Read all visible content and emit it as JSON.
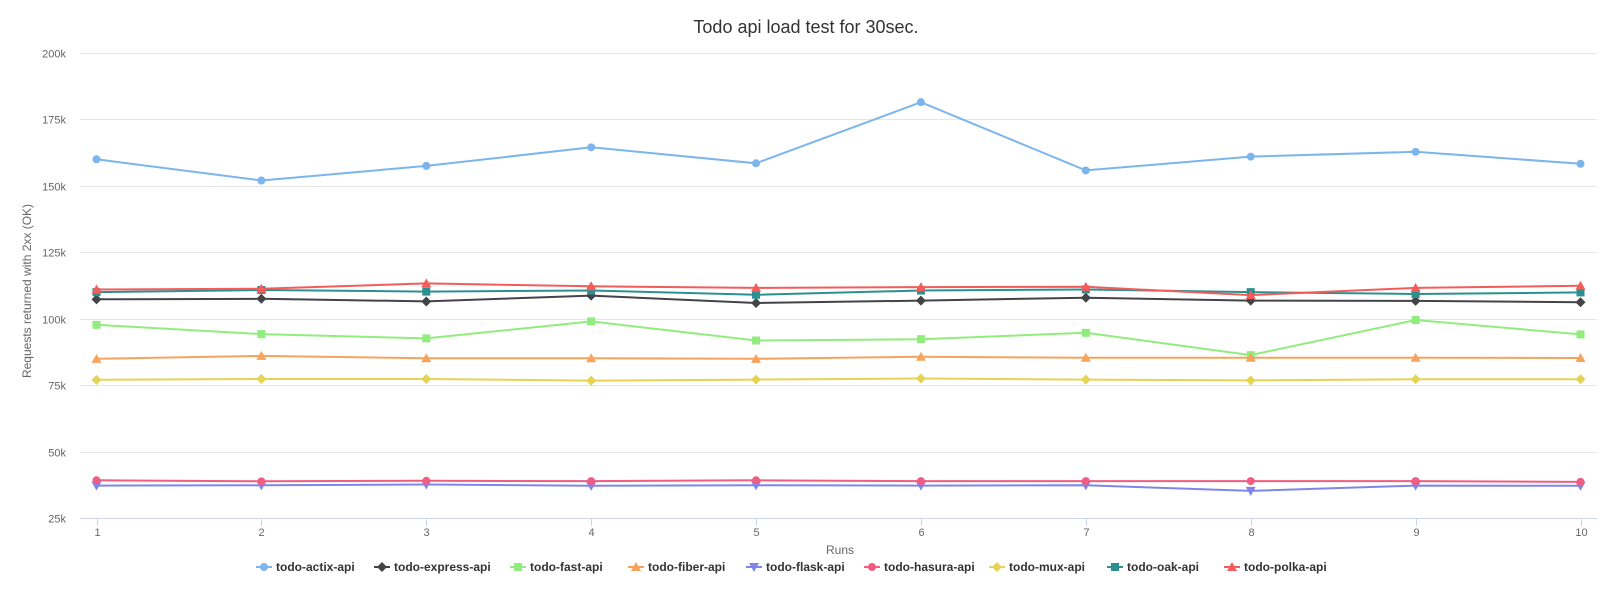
{
  "chart_data": {
    "type": "line",
    "title": "Todo api load test for 30sec.",
    "xlabel": "Runs",
    "ylabel": "Requests returned with 2xx (OK)",
    "x": [
      1,
      2,
      3,
      4,
      5,
      6,
      7,
      8,
      9,
      10
    ],
    "x_tick_labels": [
      "1",
      "2",
      "3",
      "4",
      "5",
      "6",
      "7",
      "8",
      "9",
      "10"
    ],
    "ylim": [
      25000,
      200000
    ],
    "y_ticks": [
      25000,
      50000,
      75000,
      100000,
      125000,
      150000,
      175000,
      200000
    ],
    "y_tick_labels": [
      "25k",
      "50k",
      "75k",
      "100k",
      "125k",
      "150k",
      "175k",
      "200k"
    ],
    "grid": true,
    "legend_position": "bottom",
    "series": [
      {
        "name": "todo-actix-api",
        "color": "#7cb5ec",
        "marker": "circle",
        "values": [
          160000,
          152000,
          157500,
          164500,
          158500,
          181500,
          155800,
          161000,
          162800,
          158300
        ]
      },
      {
        "name": "todo-express-api",
        "color": "#434348",
        "marker": "diamond",
        "values": [
          107300,
          107500,
          106500,
          108700,
          105900,
          106800,
          107900,
          106800,
          106700,
          106200
        ]
      },
      {
        "name": "todo-fast-api",
        "color": "#90ed7d",
        "marker": "square",
        "values": [
          97700,
          94200,
          92600,
          99000,
          91800,
          92300,
          94700,
          86300,
          99500,
          94100
        ]
      },
      {
        "name": "todo-fiber-api",
        "color": "#f7a35c",
        "marker": "triangle",
        "values": [
          84900,
          86000,
          85100,
          85100,
          84900,
          85700,
          85300,
          85300,
          85300,
          85200
        ]
      },
      {
        "name": "todo-flask-api",
        "color": "#8085e9",
        "marker": "triangle-down",
        "values": [
          37200,
          37300,
          37600,
          37100,
          37300,
          37200,
          37300,
          35200,
          37200,
          37100
        ]
      },
      {
        "name": "todo-hasura-api",
        "color": "#f15c80",
        "marker": "circle",
        "values": [
          39200,
          38800,
          39000,
          38900,
          39200,
          38900,
          38900,
          38900,
          38900,
          38600
        ]
      },
      {
        "name": "todo-mux-api",
        "color": "#e4d354",
        "marker": "diamond",
        "values": [
          77000,
          77300,
          77300,
          76700,
          77100,
          77500,
          77100,
          76800,
          77200,
          77200
        ]
      },
      {
        "name": "todo-oak-api",
        "color": "#2b908f",
        "marker": "square",
        "values": [
          110000,
          110800,
          110200,
          110600,
          109000,
          110600,
          111000,
          110000,
          109300,
          109900
        ]
      },
      {
        "name": "todo-polka-api",
        "color": "#f45b5b",
        "marker": "triangle",
        "values": [
          111000,
          111300,
          113300,
          112200,
          111600,
          111900,
          112000,
          108900,
          111600,
          112400
        ]
      }
    ]
  }
}
